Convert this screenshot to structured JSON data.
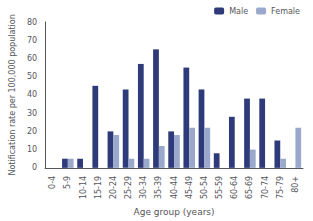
{
  "chart_data": {
    "type": "bar",
    "categories": [
      "0-4",
      "5-9",
      "10-14",
      "15-19",
      "20-24",
      "25-29",
      "30-34",
      "35-39",
      "40-44",
      "45-49",
      "50-54",
      "55-59",
      "60-64",
      "65-69",
      "70-74",
      "75-79",
      "80+"
    ],
    "series": [
      {
        "name": "Male",
        "color": "#2e3a7a",
        "values": [
          0,
          5,
          5,
          45,
          20,
          43,
          57,
          65,
          20,
          55,
          43,
          8,
          28,
          38,
          38,
          15,
          0
        ]
      },
      {
        "name": "Female",
        "color": "#9aa8cc",
        "values": [
          0,
          5,
          0,
          0,
          18,
          5,
          5,
          12,
          18,
          22,
          22,
          0,
          0,
          10,
          0,
          5,
          22
        ]
      }
    ],
    "xlabel": "Age group (years)",
    "ylabel": "Notification rate per 100,000 population",
    "ylim": [
      0,
      80
    ],
    "yticks": [
      0,
      10,
      20,
      30,
      40,
      50,
      60,
      70,
      80
    ],
    "grid": false,
    "legend": "upper right"
  }
}
